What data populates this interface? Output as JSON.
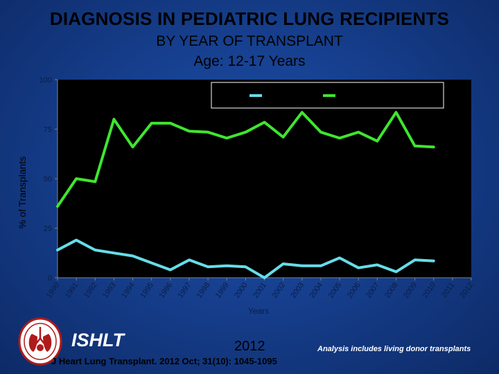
{
  "title": {
    "line1": "DIAGNOSIS IN PEDIATRIC LUNG RECIPIENTS",
    "line2": "BY YEAR OF TRANSPLANT",
    "line3": "Age: 12-17 Years"
  },
  "footer": {
    "brand": "ISHLT",
    "year": "2012",
    "note": "Analysis includes living donor transplants",
    "citation": "J Heart Lung Transplant. 2012 Oct; 31(10): 1045-1095"
  },
  "colors": {
    "background": "#163f8e",
    "plot_background": "#000000",
    "series_cyan": "#66dde8",
    "series_green": "#3ee62e",
    "axis_text": "#0a1d47"
  },
  "chart_data": {
    "type": "line",
    "title": "DIAGNOSIS IN PEDIATRIC LUNG RECIPIENTS",
    "ylabel": "% of Transplants",
    "xlabel": "Years",
    "ylim": [
      0,
      100
    ],
    "yticks": [
      0,
      25,
      50,
      75,
      100
    ],
    "grid": false,
    "legend_position": "top-right",
    "x": [
      "1990",
      "1991",
      "1992",
      "1993",
      "1994",
      "1995",
      "1996",
      "1997",
      "1998",
      "1999",
      "2000",
      "2001",
      "2002",
      "2003",
      "2004",
      "2005",
      "2006",
      "2007",
      "2008",
      "2009",
      "2010",
      "2011",
      "2012"
    ],
    "series": [
      {
        "color": "#66dde8",
        "values": [
          14,
          19,
          14,
          12.5,
          11,
          7.5,
          4,
          9,
          5.5,
          6,
          5.5,
          0,
          7,
          6,
          6,
          10,
          5,
          6.5,
          3,
          9,
          8.5,
          null,
          null
        ]
      },
      {
        "color": "#3ee62e",
        "values": [
          36,
          50,
          48.5,
          80,
          66,
          78,
          78,
          74,
          73.5,
          70.5,
          73.5,
          78.5,
          71,
          83.5,
          73.5,
          70.5,
          73.5,
          69,
          83.5,
          66.5,
          66,
          null,
          null
        ]
      }
    ]
  }
}
